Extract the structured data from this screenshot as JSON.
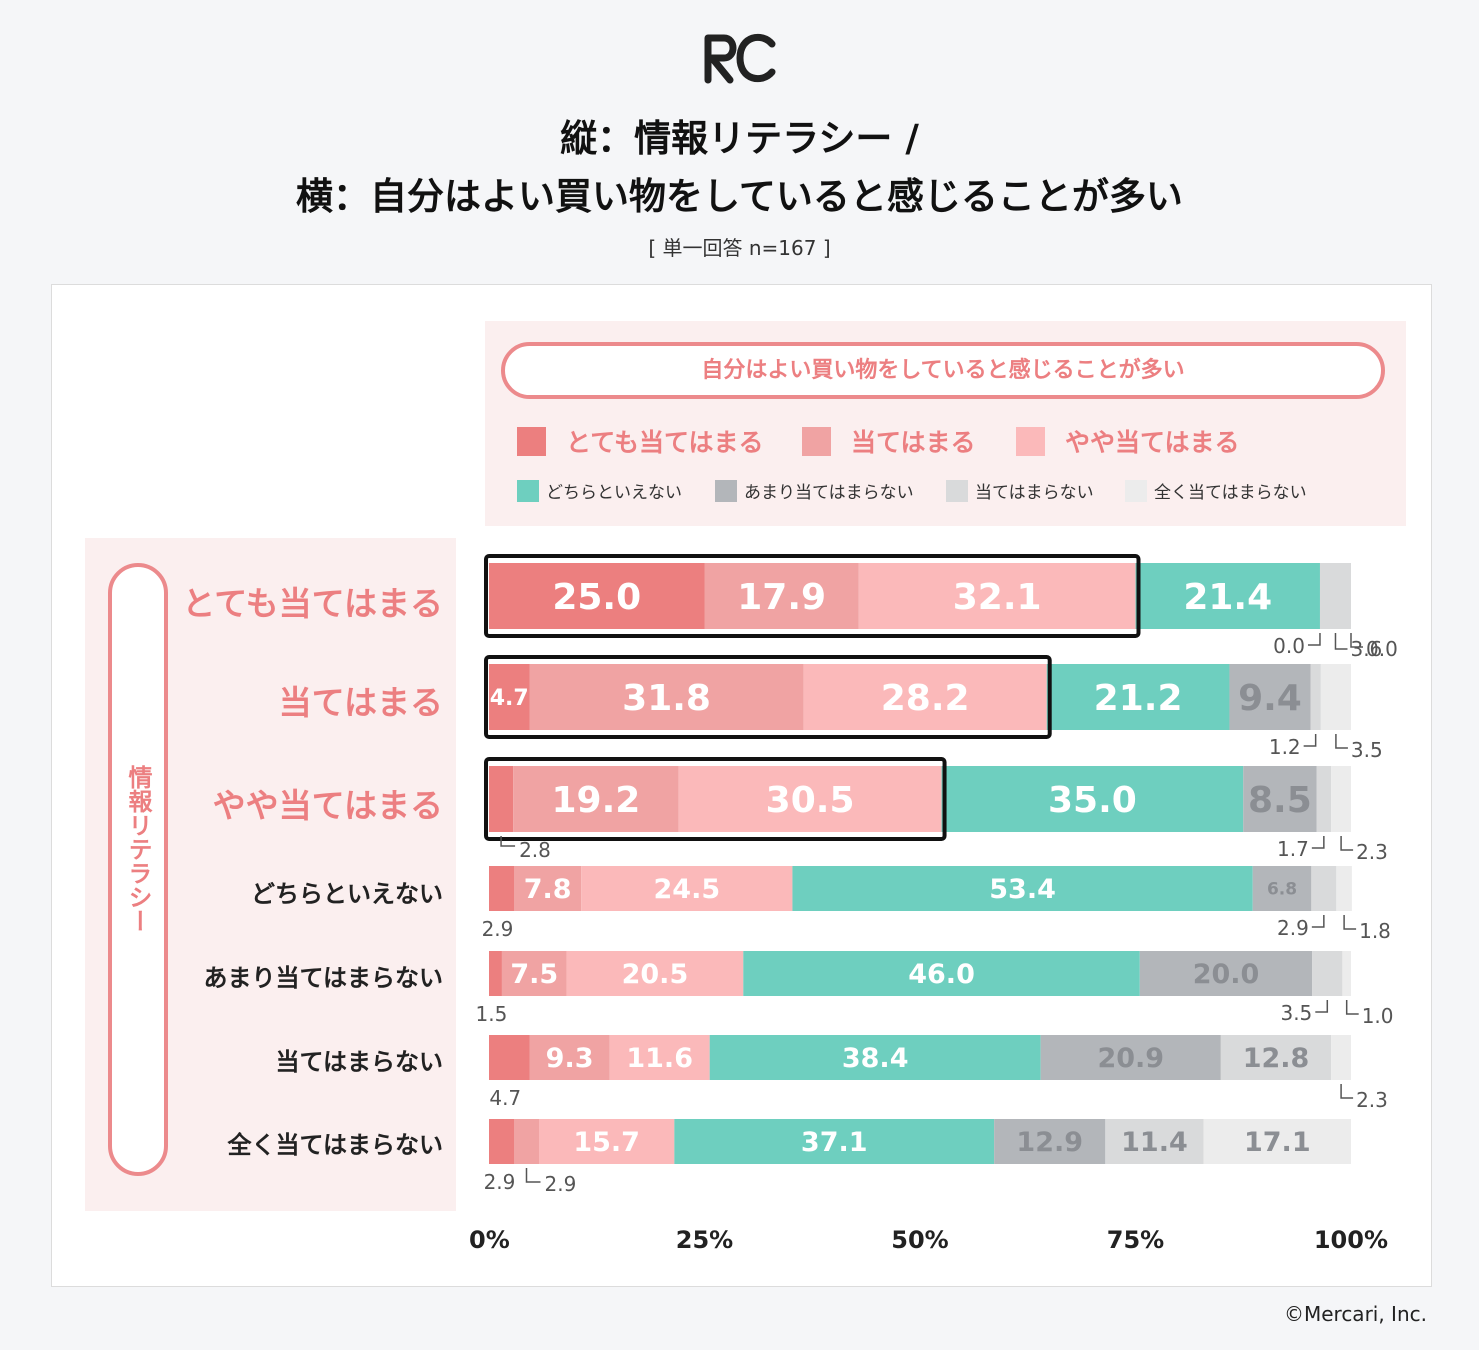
{
  "header": {
    "title_line1": "縦：情報リテラシー /",
    "title_line2": "横：自分はよい買い物をしていると感じることが多い",
    "subtitle": "[ 単一回答 n=167 ]",
    "logo_text": "RC"
  },
  "legend": {
    "title": "自分はよい買い物をしていると感じることが多い",
    "primary": [
      {
        "label": "とても当てはまる",
        "color": "#ec7f7f"
      },
      {
        "label": "当てはまる",
        "color": "#f0a3a3"
      },
      {
        "label": "やや当てはまる",
        "color": "#fbb9ba"
      }
    ],
    "secondary": [
      {
        "label": "どちらといえない",
        "color": "#6ecfbf"
      },
      {
        "label": "あまり当てはまらない",
        "color": "#b3b6ba"
      },
      {
        "label": "当てはまらない",
        "color": "#d9dadb"
      },
      {
        "label": "全く当てはまらない",
        "color": "#ececec"
      }
    ]
  },
  "row_axis_label": "情報リテラシー",
  "footer": {
    "copyright": "©Mercari, Inc."
  },
  "chart_data": {
    "type": "stacked-bar-horizontal",
    "title": "縦：情報リテラシー / 横：自分はよい買い物をしていると感じることが多い",
    "unit": "%",
    "xlim": [
      0,
      100
    ],
    "x_ticks": [
      "0%",
      "25%",
      "50%",
      "75%",
      "100%"
    ],
    "series": [
      "とても当てはまる",
      "当てはまる",
      "やや当てはまる",
      "どちらといえない",
      "あまり当てはまらない",
      "当てはまらない",
      "全く当てはまらない"
    ],
    "colors": [
      "#ec7f7f",
      "#f0a3a3",
      "#fbb9ba",
      "#6ecfbf",
      "#b3b6ba",
      "#d9dadb",
      "#ececec"
    ],
    "categories": [
      "とても当てはまる",
      "当てはまる",
      "やや当てはまる",
      "どちらといえない",
      "あまり当てはまらない",
      "当てはまらない",
      "全く当てはまらない"
    ],
    "values": [
      [
        25.0,
        17.9,
        32.1,
        21.4,
        0.0,
        3.6,
        0.0
      ],
      [
        4.7,
        31.8,
        28.2,
        21.2,
        9.4,
        1.2,
        3.5
      ],
      [
        2.8,
        19.2,
        30.5,
        35.0,
        8.5,
        1.7,
        2.3
      ],
      [
        2.9,
        7.8,
        24.5,
        53.4,
        6.8,
        2.9,
        1.8
      ],
      [
        1.5,
        7.5,
        20.5,
        46.0,
        20.0,
        3.5,
        1.0
      ],
      [
        4.7,
        9.3,
        11.6,
        38.4,
        20.9,
        12.8,
        2.3
      ],
      [
        2.9,
        2.9,
        15.7,
        37.1,
        12.9,
        11.4,
        17.1
      ]
    ],
    "inside_labels": [
      [
        "25.0",
        "17.9",
        "32.1",
        "21.4",
        "",
        "",
        ""
      ],
      [
        "4.7",
        "31.8",
        "28.2",
        "21.2",
        "9.4",
        "",
        ""
      ],
      [
        "",
        "19.2",
        "30.5",
        "35.0",
        "8.5",
        "",
        ""
      ],
      [
        "",
        "7.8",
        "24.5",
        "53.4",
        "6.8",
        "",
        ""
      ],
      [
        "",
        "7.5",
        "20.5",
        "46.0",
        "20.0",
        "",
        ""
      ],
      [
        "",
        "9.3",
        "11.6",
        "38.4",
        "20.9",
        "12.8",
        ""
      ],
      [
        "",
        "",
        "15.7",
        "37.1",
        "12.9",
        "11.4",
        "17.1"
      ]
    ],
    "outside_labels": [
      [
        {
          "text": "0.0",
          "series": 4
        },
        {
          "text": "3.6",
          "series": 5
        },
        {
          "text": "0.0",
          "series": 6
        }
      ],
      [
        {
          "text": "1.2",
          "series": 5
        },
        {
          "text": "3.5",
          "series": 6
        }
      ],
      [
        {
          "text": "2.8",
          "series": 0
        },
        {
          "text": "1.7",
          "series": 5
        },
        {
          "text": "2.3",
          "series": 6
        }
      ],
      [
        {
          "text": "2.9",
          "series": 0
        },
        {
          "text": "2.9",
          "series": 5
        },
        {
          "text": "1.8",
          "series": 6
        }
      ],
      [
        {
          "text": "1.5",
          "series": 0
        },
        {
          "text": "3.5",
          "series": 5
        },
        {
          "text": "1.0",
          "series": 6
        }
      ],
      [
        {
          "text": "4.7",
          "series": 0
        },
        {
          "text": "2.3",
          "series": 6
        }
      ],
      [
        {
          "text": "2.9",
          "series": 0
        },
        {
          "text": "2.9",
          "series": 1
        }
      ]
    ],
    "highlighted_rows": [
      0,
      1,
      2
    ],
    "highlighted_series_count": 3
  }
}
